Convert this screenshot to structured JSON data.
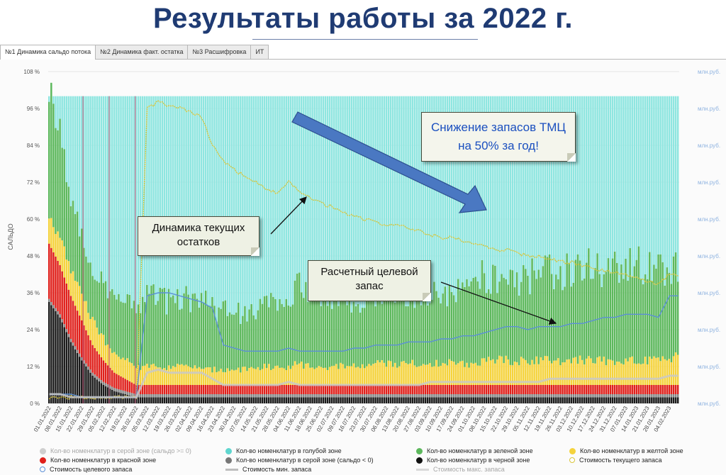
{
  "title": "Результаты работы за 2022 г.",
  "tabs": [
    {
      "label": "№1 Динамика сальдо потока",
      "active": true
    },
    {
      "label": "№2 Динамика факт. остатка",
      "active": false
    },
    {
      "label": "№3 Расшифровка",
      "active": false
    },
    {
      "label": "ИТ",
      "active": false
    }
  ],
  "callouts": {
    "reduction": "Снижение запасов ТМЦ на 50% за год!",
    "current": "Динамика текущих остатков",
    "target": "Расчетный целевой запас"
  },
  "legend": [
    {
      "label": "Кол-во номенклатур в серой зоне (сальдо >= 0)",
      "color": "#cfcfcf",
      "kind": "dot",
      "muted": true
    },
    {
      "label": "Кол-во номенклатур в голубой зоне",
      "color": "#5fd6cf",
      "kind": "dot",
      "muted": false
    },
    {
      "label": "Кол-во номенклатур в зеленой зоне",
      "color": "#5cb85c",
      "kind": "dot",
      "muted": false
    },
    {
      "label": "Кол-во номенклатур в желтой зоне",
      "color": "#f5d33b",
      "kind": "dot",
      "muted": false
    },
    {
      "label": "Кол-во номенклатур в красной зоне",
      "color": "#e0201b",
      "kind": "dot",
      "muted": false
    },
    {
      "label": "Кол-во номенклатур в серой зоне (сальдо < 0)",
      "color": "#777777",
      "kind": "dot",
      "muted": false
    },
    {
      "label": "Кол-во номенклатур в черной зоне",
      "color": "#111111",
      "kind": "dot",
      "muted": false
    },
    {
      "label": "Стоимость текущего запаса",
      "color": "#d9c53a",
      "kind": "ring",
      "muted": false
    },
    {
      "label": "Стоимость целевого запаса",
      "color": "#5b8fd6",
      "kind": "ring",
      "muted": false
    },
    {
      "label": "Стоимость мин. запаса",
      "color": "#bdbdbd",
      "kind": "line",
      "muted": false
    },
    {
      "label": "Стоимость макс. запаса",
      "color": "#d9d9d9",
      "kind": "line",
      "muted": true
    }
  ],
  "chart_data": {
    "type": "bar",
    "stacked": true,
    "ylabel": "САЛЬДО",
    "ylim": [
      0,
      108
    ],
    "yticks": [
      "0 %",
      "12 %",
      "24 %",
      "36 %",
      "48 %",
      "60 %",
      "72 %",
      "84 %",
      "96 %",
      "108 %"
    ],
    "y2_tick_label": "млн.руб.",
    "xticks": [
      "01.01.2022",
      "08.01.2022",
      "15.01.2022",
      "22.01.2022",
      "29.01.2022",
      "05.02.2022",
      "12.02.2022",
      "19.02.2022",
      "26.02.2022",
      "05.03.2022",
      "12.03.2022",
      "19.03.2022",
      "26.03.2022",
      "02.04.2022",
      "09.04.2022",
      "16.04.2022",
      "23.04.2022",
      "30.04.2022",
      "07.05.2022",
      "14.05.2022",
      "21.05.2022",
      "28.05.2022",
      "04.06.2022",
      "11.06.2022",
      "18.06.2022",
      "25.06.2022",
      "02.07.2022",
      "09.07.2022",
      "16.07.2022",
      "23.07.2022",
      "30.07.2022",
      "06.08.2022",
      "13.08.2022",
      "20.08.2022",
      "27.08.2022",
      "03.09.2022",
      "10.09.2022",
      "17.09.2022",
      "24.09.2022",
      "01.10.2022",
      "08.10.2022",
      "15.10.2022",
      "22.10.2022",
      "29.10.2022",
      "05.11.2022",
      "12.11.2022",
      "19.11.2022",
      "26.11.2022",
      "03.12.2022",
      "10.12.2022",
      "17.12.2022",
      "24.12.2022",
      "31.12.2022",
      "07.01.2023",
      "14.01.2023",
      "21.01.2023",
      "28.01.2023",
      "04.02.2023"
    ],
    "zones_key": [
      "black",
      "gray_neg",
      "red",
      "yellow",
      "green",
      "blue"
    ],
    "zone_colors": {
      "black": "#1a1a1a",
      "gray_neg": "#888888",
      "red": "#e0201b",
      "yellow": "#f5d33b",
      "green": "#5cb85c",
      "blue": "#8ee6e0"
    },
    "series": [
      {
        "name": "Кол-во номенклатур в черной зоне",
        "key": "black",
        "weekly": [
          33,
          28,
          20,
          14,
          9,
          6,
          4,
          3,
          2,
          2,
          2,
          2,
          2,
          2,
          2,
          2,
          2,
          2,
          2,
          2,
          2,
          2,
          2,
          2,
          2,
          2,
          2,
          2,
          2,
          2,
          2,
          2,
          2,
          2,
          2,
          2,
          2,
          2,
          2,
          2,
          2,
          2,
          2,
          2,
          2,
          2,
          2,
          2,
          2,
          2,
          2,
          2,
          2,
          2,
          2,
          2,
          2,
          2
        ]
      },
      {
        "name": "Кол-во номенклатур в серой зоне (сальдо < 0)",
        "key": "gray_neg",
        "weekly": [
          1,
          1,
          1,
          1,
          1,
          1,
          1,
          1,
          1,
          1,
          1,
          1,
          1,
          1,
          1,
          1,
          1,
          1,
          1,
          1,
          1,
          1,
          1,
          1,
          1,
          1,
          1,
          1,
          1,
          1,
          1,
          1,
          1,
          1,
          1,
          1,
          1,
          1,
          1,
          1,
          1,
          1,
          1,
          1,
          1,
          1,
          1,
          1,
          1,
          1,
          1,
          1,
          1,
          1,
          1,
          1,
          1,
          1
        ]
      },
      {
        "name": "Кол-во номенклатур в красной зоне",
        "key": "red",
        "weekly": [
          18,
          16,
          14,
          12,
          9,
          7,
          5,
          4,
          3,
          3,
          3,
          3,
          3,
          3,
          3,
          3,
          3,
          3,
          3,
          3,
          3,
          3,
          3,
          3,
          3,
          3,
          3,
          3,
          3,
          3,
          3,
          3,
          3,
          3,
          3,
          3,
          3,
          3,
          3,
          3,
          3,
          3,
          3,
          3,
          3,
          3,
          3,
          3,
          3,
          3,
          3,
          3,
          3,
          3,
          3,
          3,
          3,
          3
        ]
      },
      {
        "name": "Кол-во номенклатур в желтой зоне",
        "key": "yellow",
        "weekly": [
          8,
          9,
          9,
          8,
          8,
          7,
          6,
          6,
          6,
          6,
          6,
          6,
          6,
          6,
          5,
          5,
          5,
          5,
          5,
          5,
          6,
          6,
          6,
          7,
          6,
          6,
          6,
          6,
          6,
          6,
          7,
          7,
          7,
          7,
          7,
          7,
          7,
          7,
          7,
          7,
          8,
          8,
          8,
          8,
          8,
          8,
          8,
          8,
          8,
          8,
          8,
          8,
          8,
          8,
          8,
          8,
          8,
          9
        ]
      },
      {
        "name": "Кол-во номенклатур в зеленой зоне",
        "key": "green",
        "weekly": [
          40,
          35,
          25,
          18,
          16,
          18,
          18,
          18,
          19,
          22,
          23,
          22,
          22,
          21,
          21,
          21,
          20,
          20,
          19,
          19,
          22,
          22,
          24,
          25,
          24,
          23,
          23,
          22,
          21,
          21,
          22,
          23,
          23,
          23,
          23,
          24,
          24,
          24,
          25,
          26,
          27,
          27,
          27,
          28,
          28,
          28,
          29,
          29,
          30,
          30,
          30,
          30,
          31,
          31,
          32,
          32,
          30,
          28
        ]
      },
      {
        "name": "Кол-во номенклатур в голубой зоне",
        "key": "blue_fill_to",
        "weekly": [
          100,
          100,
          100,
          100,
          100,
          100,
          100,
          100,
          100,
          100,
          100,
          100,
          100,
          100,
          100,
          100,
          100,
          100,
          100,
          100,
          100,
          100,
          100,
          100,
          100,
          100,
          100,
          100,
          100,
          100,
          100,
          100,
          100,
          100,
          100,
          100,
          100,
          100,
          100,
          100,
          100,
          100,
          100,
          100,
          100,
          100,
          100,
          100,
          100,
          100,
          100,
          100,
          100,
          100,
          100,
          100,
          100,
          100
        ]
      }
    ],
    "lines": [
      {
        "name": "Стоимость текущего запаса",
        "color": "#d9c53a",
        "values_pct": [
          2,
          2,
          2,
          2,
          2,
          2,
          2,
          2,
          2,
          96,
          98,
          97,
          96,
          95,
          93,
          84,
          79,
          76,
          74,
          72,
          70,
          68,
          72,
          69,
          67,
          65,
          64,
          62,
          61,
          60,
          59,
          58,
          58,
          57,
          56,
          55,
          54,
          54,
          53,
          52,
          51,
          50,
          50,
          49,
          48,
          48,
          47,
          46,
          46,
          45,
          44,
          43,
          43,
          42,
          41,
          40,
          39,
          42
        ]
      },
      {
        "name": "Стоимость целевого запаса",
        "color": "#5b8fd6",
        "values_pct": [
          3,
          3,
          3,
          2,
          2,
          2,
          2,
          2,
          2,
          35,
          36,
          36,
          35,
          34,
          33,
          31,
          19,
          18,
          17,
          17,
          17,
          17,
          18,
          17,
          17,
          17,
          17,
          17,
          18,
          18,
          19,
          19,
          19,
          20,
          20,
          20,
          21,
          21,
          22,
          22,
          23,
          24,
          25,
          25,
          24,
          25,
          25,
          25,
          26,
          26,
          27,
          28,
          28,
          29,
          29,
          29,
          28,
          35
        ]
      },
      {
        "name": "Стоимость мин. запаса",
        "color": "#c8c8c8",
        "values_pct": [
          3,
          3,
          2,
          2,
          2,
          2,
          2,
          2,
          2,
          10,
          11,
          10,
          10,
          10,
          10,
          8,
          6,
          6,
          6,
          6,
          6,
          6,
          7,
          6,
          6,
          6,
          6,
          6,
          6,
          6,
          6,
          6,
          6,
          6,
          6,
          7,
          7,
          7,
          7,
          7,
          7,
          7,
          7,
          7,
          7,
          7,
          8,
          8,
          8,
          8,
          8,
          8,
          8,
          8,
          8,
          8,
          8,
          9
        ]
      }
    ]
  }
}
